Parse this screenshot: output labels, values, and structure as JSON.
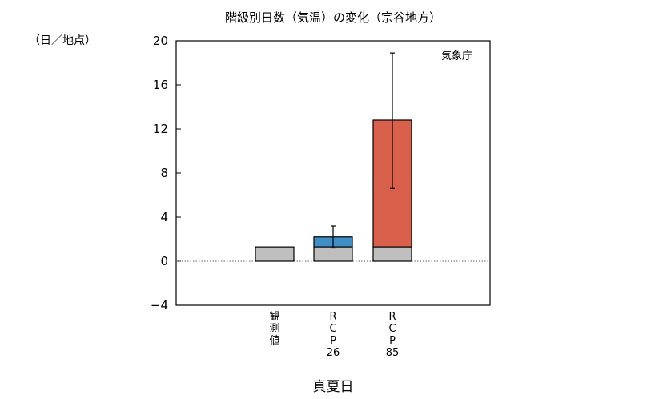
{
  "chart_data": {
    "type": "bar",
    "title": "階級別日数（気温）の変化（宗谷地方）",
    "ylabel": "（日／地点）",
    "xlabel": "真夏日",
    "source": "気象庁",
    "ylim": [
      -4,
      20
    ],
    "yticks": [
      20,
      16,
      12,
      8,
      4,
      0,
      -4
    ],
    "categories": [
      {
        "id": "obs",
        "label": [
          "観",
          "測",
          "値"
        ]
      },
      {
        "id": "rcp26",
        "label": [
          "R",
          "C",
          "P",
          "26"
        ]
      },
      {
        "id": "rcp85",
        "label": [
          "R",
          "C",
          "P",
          "85"
        ]
      }
    ],
    "series": [
      {
        "category": "obs",
        "present": 1.3,
        "change": 0,
        "total": 1.3,
        "error_low": null,
        "error_high": null
      },
      {
        "category": "rcp26",
        "present": 1.3,
        "change": 0.9,
        "total": 2.2,
        "error_low": 1.2,
        "error_high": 3.2
      },
      {
        "category": "rcp85",
        "present": 1.3,
        "change": 11.5,
        "total": 12.8,
        "error_low": 6.6,
        "error_high": 18.9
      }
    ],
    "colors": {
      "present": "#bfbfbf",
      "rcp26": "#3f8ec6",
      "rcp85": "#d9614b"
    },
    "zero_line": "dotted"
  }
}
